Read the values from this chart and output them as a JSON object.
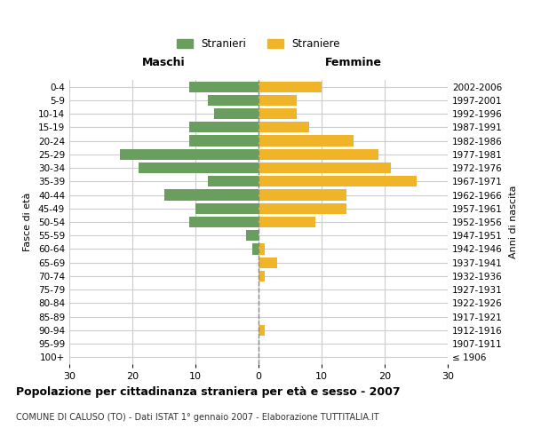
{
  "age_groups": [
    "100+",
    "95-99",
    "90-94",
    "85-89",
    "80-84",
    "75-79",
    "70-74",
    "65-69",
    "60-64",
    "55-59",
    "50-54",
    "45-49",
    "40-44",
    "35-39",
    "30-34",
    "25-29",
    "20-24",
    "15-19",
    "10-14",
    "5-9",
    "0-4"
  ],
  "birth_years": [
    "≤ 1906",
    "1907-1911",
    "1912-1916",
    "1917-1921",
    "1922-1926",
    "1927-1931",
    "1932-1936",
    "1937-1941",
    "1942-1946",
    "1947-1951",
    "1952-1956",
    "1957-1961",
    "1962-1966",
    "1967-1971",
    "1972-1976",
    "1977-1981",
    "1982-1986",
    "1987-1991",
    "1992-1996",
    "1997-2001",
    "2002-2006"
  ],
  "maschi": [
    0,
    0,
    0,
    0,
    0,
    0,
    0,
    0,
    1,
    2,
    11,
    10,
    15,
    8,
    19,
    22,
    11,
    11,
    7,
    8,
    11
  ],
  "femmine": [
    0,
    0,
    1,
    0,
    0,
    0,
    1,
    3,
    1,
    0,
    9,
    14,
    14,
    25,
    21,
    19,
    15,
    8,
    6,
    6,
    10
  ],
  "maschi_color": "#6a9e5e",
  "femmine_color": "#f0b429",
  "dashed_line_color": "#888888",
  "grid_color": "#cccccc",
  "bg_color": "#ffffff",
  "title": "Popolazione per cittadinanza straniera per età e sesso - 2007",
  "subtitle": "COMUNE DI CALUSO (TO) - Dati ISTAT 1° gennaio 2007 - Elaborazione TUTTITALIA.IT",
  "ylabel_left": "Fasce di età",
  "ylabel_right": "Anni di nascita",
  "xlabel_maschi": "Maschi",
  "xlabel_femmine": "Femmine",
  "legend_maschi": "Stranieri",
  "legend_femmine": "Straniere",
  "xlim": 30,
  "bar_height": 0.8
}
